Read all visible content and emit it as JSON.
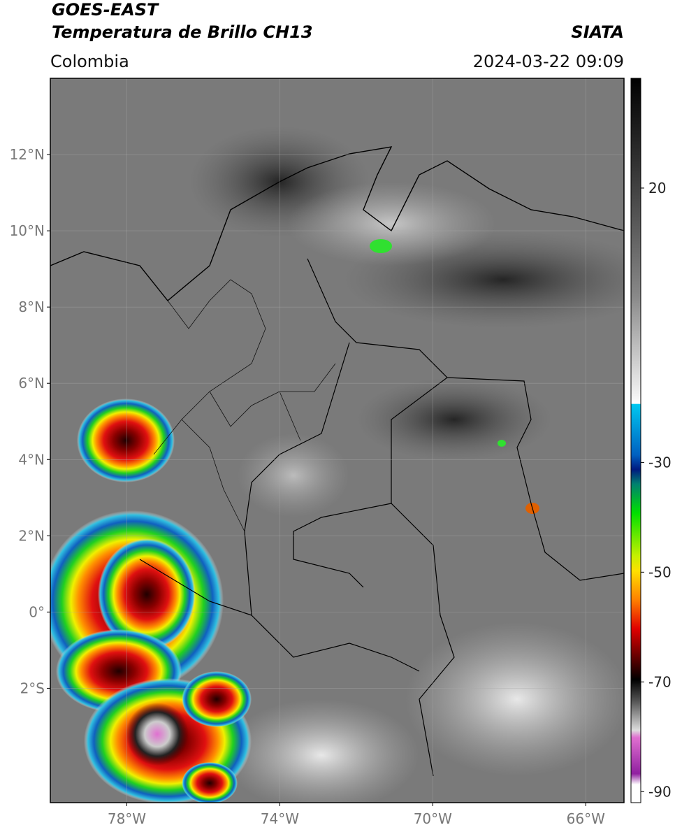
{
  "header": {
    "satellite": "GOES-EAST",
    "product": "Temperatura de Brillo CH13",
    "region": "Colombia",
    "organization": "SIATA",
    "datetime": "2024-03-22 09:09"
  },
  "map": {
    "xlim": [
      -80,
      -65
    ],
    "ylim": [
      -5,
      14
    ],
    "xticks": [
      {
        "value": -78,
        "label": "78°W"
      },
      {
        "value": -74,
        "label": "74°W"
      },
      {
        "value": -70,
        "label": "70°W"
      },
      {
        "value": -66,
        "label": "66°W"
      }
    ],
    "yticks": [
      {
        "value": 12,
        "label": "12°N"
      },
      {
        "value": 10,
        "label": "10°N"
      },
      {
        "value": 8,
        "label": "8°N"
      },
      {
        "value": 6,
        "label": "6°N"
      },
      {
        "value": 4,
        "label": "4°N"
      },
      {
        "value": 2,
        "label": "2°N"
      },
      {
        "value": 0,
        "label": "0°"
      },
      {
        "value": -2,
        "label": "2°S"
      }
    ],
    "colorbar": {
      "lim": [
        -92,
        40
      ],
      "ticks": [
        20,
        -30,
        -50,
        -70,
        -90
      ]
    }
  }
}
